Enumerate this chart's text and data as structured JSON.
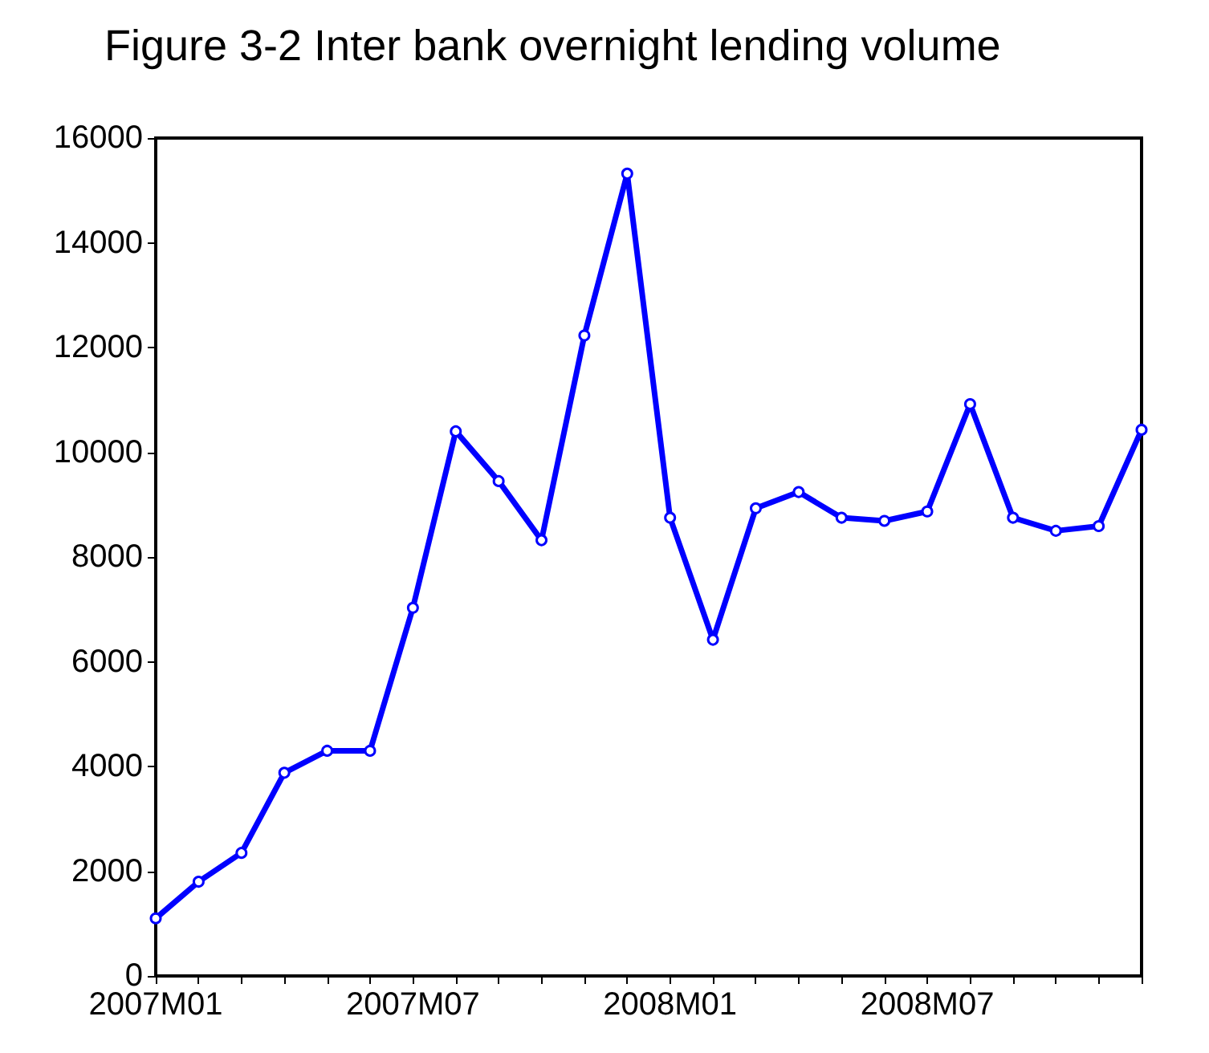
{
  "chart_data": {
    "type": "line",
    "title": "Figure 3-2 Inter bank overnight lending volume",
    "categories": [
      "2007M01",
      null,
      null,
      null,
      null,
      null,
      "2007M07",
      null,
      null,
      null,
      null,
      null,
      "2008M01",
      null,
      null,
      null,
      null,
      null,
      "2008M07",
      null,
      null,
      null,
      null,
      null
    ],
    "series": [
      {
        "color": "#0000ff",
        "values": [
          1100,
          1800,
          2350,
          3880,
          4300,
          4300,
          7030,
          10400,
          9450,
          8320,
          12230,
          15320,
          8750,
          6420,
          8930,
          9240,
          8750,
          8690,
          8870,
          10920,
          8750,
          8500,
          8590,
          10430
        ]
      }
    ],
    "ylim": [
      0,
      16000
    ],
    "yticks": [
      0,
      2000,
      4000,
      6000,
      8000,
      10000,
      12000,
      14000,
      16000
    ],
    "grid": false,
    "marker": "circle",
    "line_style": "solid"
  }
}
